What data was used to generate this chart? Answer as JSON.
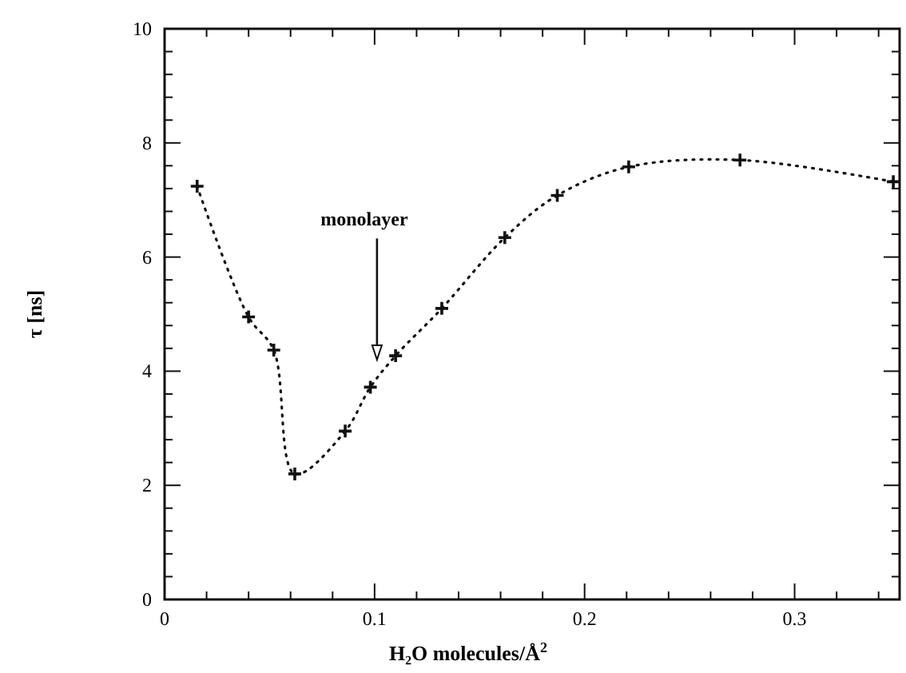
{
  "chart_data": {
    "type": "line",
    "xlabel": "H₂O molecules/Å$^{2}$",
    "ylabel": "τ [ns]",
    "x": [
      0.0155,
      0.04,
      0.052,
      0.062,
      0.086,
      0.098,
      0.11,
      0.132,
      0.162,
      0.187,
      0.221,
      0.274,
      0.347
    ],
    "series": [
      {
        "color": "#111111",
        "values": [
          7.24,
          4.95,
          4.37,
          2.2,
          2.95,
          3.72,
          4.27,
          5.1,
          6.34,
          7.08,
          7.58,
          7.7,
          7.32
        ]
      }
    ],
    "xlim": [
      0,
      0.35
    ],
    "ylim": [
      0,
      10
    ],
    "xticks": [
      0,
      {
        "value": 0.02,
        "label": null
      },
      {
        "value": 0.04,
        "label": null
      },
      {
        "value": 0.06,
        "label": null
      },
      {
        "value": 0.08,
        "label": null
      },
      0.1,
      {
        "value": 0.12,
        "label": null
      },
      {
        "value": 0.14,
        "label": null
      },
      {
        "value": 0.16,
        "label": null
      },
      {
        "value": 0.18,
        "label": null
      },
      0.2,
      {
        "value": 0.22,
        "label": null
      },
      {
        "value": 0.24,
        "label": null
      },
      {
        "value": 0.26,
        "label": null
      },
      {
        "value": 0.28,
        "label": null
      },
      0.3,
      {
        "value": 0.32,
        "label": null
      },
      {
        "value": 0.34,
        "label": null
      }
    ],
    "yticks": [
      0,
      {
        "value": 0.4,
        "label": null
      },
      {
        "value": 0.8,
        "label": null
      },
      {
        "value": 1.2,
        "label": null
      },
      {
        "value": 1.6,
        "label": null
      },
      2,
      {
        "value": 2.4,
        "label": null
      },
      {
        "value": 2.8,
        "label": null
      },
      {
        "value": 3.2,
        "label": null
      },
      {
        "value": 3.6,
        "label": null
      },
      4,
      {
        "value": 4.4,
        "label": null
      },
      {
        "value": 4.8,
        "label": null
      },
      {
        "value": 5.2,
        "label": null
      },
      {
        "value": 5.6,
        "label": null
      },
      6,
      {
        "value": 6.4,
        "label": null
      },
      {
        "value": 6.8,
        "label": null
      },
      {
        "value": 7.2,
        "label": null
      },
      {
        "value": 7.6,
        "label": null
      },
      8,
      {
        "value": 8.4,
        "label": null
      },
      {
        "value": 8.8,
        "label": null
      },
      {
        "value": 9.2,
        "label": null
      },
      {
        "value": 9.6,
        "label": null
      },
      10
    ],
    "marker": "cross",
    "line_style": "dotted",
    "annotations": [
      "monolayer"
    ]
  }
}
